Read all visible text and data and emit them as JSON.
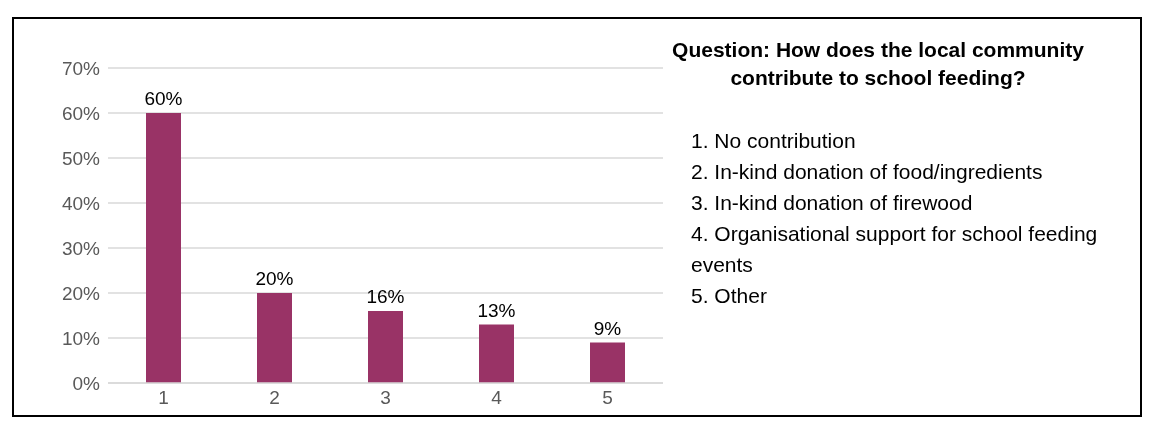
{
  "chart_data": {
    "type": "bar",
    "title": "Question: How does the local community contribute to school feeding?",
    "categories": [
      "1",
      "2",
      "3",
      "4",
      "5"
    ],
    "values": [
      60,
      20,
      16,
      13,
      9
    ],
    "value_labels": [
      "60%",
      "20%",
      "16%",
      "13%",
      "9%"
    ],
    "color": "#993366",
    "ylim": [
      0,
      70
    ],
    "yticks": [
      {
        "value": 0,
        "label": "0%"
      },
      {
        "value": 10,
        "label": "10%"
      },
      {
        "value": 20,
        "label": "20%"
      },
      {
        "value": 30,
        "label": "30%"
      },
      {
        "value": 40,
        "label": "40%"
      },
      {
        "value": 50,
        "label": "50%"
      },
      {
        "value": 60,
        "label": "60%"
      },
      {
        "value": 70,
        "label": "70%"
      }
    ],
    "grid": "y",
    "annotations": [
      "1. No contribution",
      "2. In-kind donation of food/ingredients",
      "3. In-kind donation of firewood",
      "4. Organisational support for school feeding events",
      "5. Other"
    ]
  }
}
